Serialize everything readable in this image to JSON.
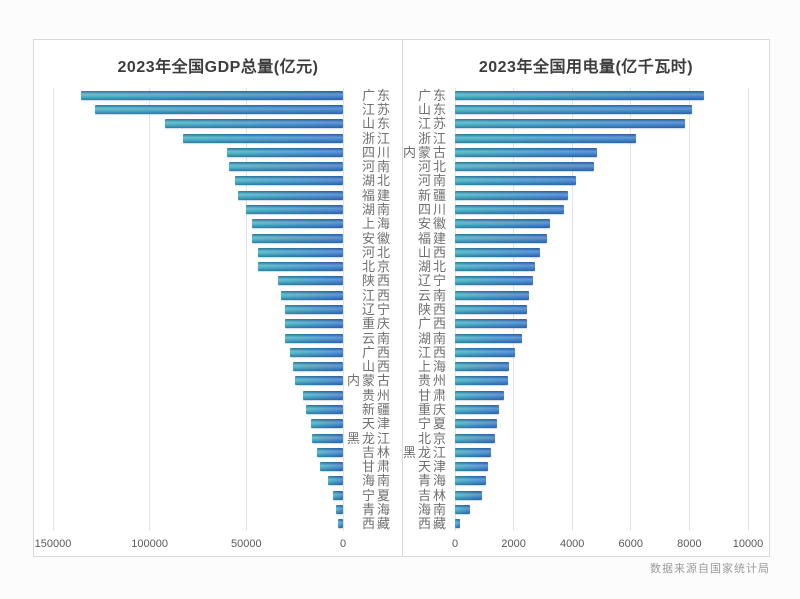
{
  "source_note": "数据来源自国家统计局",
  "colors": {
    "bar_gradient_start": "#41B1C1",
    "bar_gradient_end": "#3B7ACC",
    "gridline": "#dfe5ec",
    "panel_border": "#d9d9d9",
    "title_text": "#3d3d3d",
    "axis_text": "#595959",
    "category_text": "#707070",
    "source_text": "#9b9b9b",
    "panel_background": "#ffffff"
  },
  "chart_data": [
    {
      "type": "bar",
      "title": "2023年全国GDP总量(亿元)",
      "orientation": "horizontal",
      "value_axis_reversed": true,
      "category_labels_side": "right",
      "legend": "none",
      "grid": true,
      "xlim": [
        0,
        150000
      ],
      "tick_values": [
        150000,
        100000,
        50000,
        0
      ],
      "tick_labels": [
        "150000",
        "100000",
        "50000",
        "0"
      ],
      "categories": [
        "广东",
        "江苏",
        "山东",
        "浙江",
        "四川",
        "河南",
        "湖北",
        "福建",
        "湖南",
        "上海",
        "安徽",
        "河北",
        "北京",
        "陕西",
        "江西",
        "辽宁",
        "重庆",
        "云南",
        "广西",
        "山西",
        "内蒙古",
        "贵州",
        "新疆",
        "天津",
        "黑龙江",
        "吉林",
        "甘肃",
        "海南",
        "宁夏",
        "青海",
        "西藏"
      ],
      "values": [
        135673,
        128222,
        92069,
        82553,
        60133,
        59132,
        55804,
        54355,
        50013,
        47219,
        47051,
        43944,
        43761,
        33786,
        32200,
        30209,
        30146,
        30021,
        27202,
        25698,
        24627,
        20913,
        19126,
        16737,
        15884,
        13531,
        11864,
        7551,
        5315,
        3799,
        2393
      ]
    },
    {
      "type": "bar",
      "title": "2023年全国用电量(亿千瓦时)",
      "orientation": "horizontal",
      "value_axis_reversed": false,
      "category_labels_side": "left",
      "legend": "none",
      "grid": true,
      "xlim": [
        0,
        10000
      ],
      "tick_values": [
        0,
        2000,
        4000,
        6000,
        8000,
        10000
      ],
      "tick_labels": [
        "0",
        "2000",
        "4000",
        "6000",
        "8000",
        "10000"
      ],
      "categories": [
        "广东",
        "山东",
        "江苏",
        "浙江",
        "内蒙古",
        "河北",
        "河南",
        "新疆",
        "四川",
        "安徽",
        "福建",
        "山西",
        "湖北",
        "辽宁",
        "云南",
        "陕西",
        "广西",
        "湖南",
        "江西",
        "上海",
        "贵州",
        "甘肃",
        "重庆",
        "宁夏",
        "北京",
        "黑龙江",
        "天津",
        "青海",
        "吉林",
        "海南",
        "西藏"
      ],
      "values": [
        8502,
        8100,
        7833,
        6192,
        4860,
        4750,
        4130,
        3860,
        3720,
        3240,
        3140,
        2910,
        2740,
        2670,
        2530,
        2470,
        2460,
        2290,
        2050,
        1849,
        1810,
        1680,
        1500,
        1430,
        1370,
        1230,
        1130,
        1060,
        920,
        510,
        170
      ]
    }
  ]
}
